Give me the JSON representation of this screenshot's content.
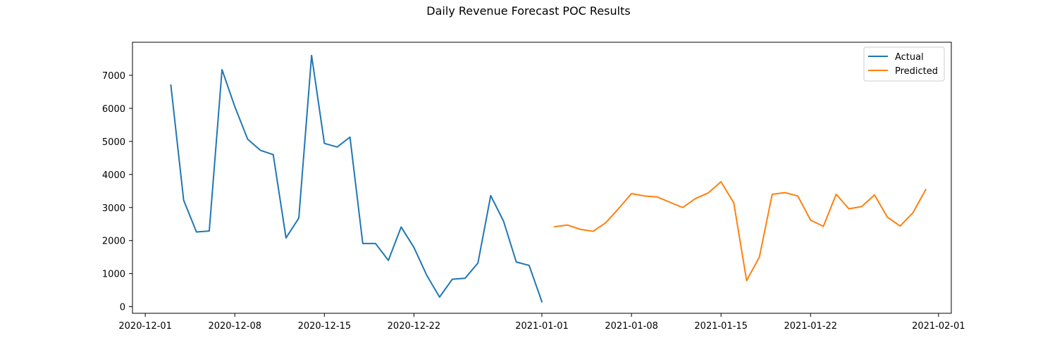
{
  "chart_data": {
    "type": "line",
    "title": "Daily Revenue Forecast POC Results",
    "xlabel": "",
    "ylabel": "",
    "xlim": [
      "2020-11-30",
      "2021-02-02"
    ],
    "ylim": [
      -200,
      8000
    ],
    "grid": false,
    "legend_position": "top-right",
    "x_ticks": [
      "2020-12-01",
      "2020-12-08",
      "2020-12-15",
      "2020-12-22",
      "2021-01-01",
      "2021-01-08",
      "2021-01-15",
      "2021-01-22",
      "2021-02-01"
    ],
    "y_ticks": [
      0,
      1000,
      2000,
      3000,
      4000,
      5000,
      6000,
      7000
    ],
    "series": [
      {
        "name": "Actual",
        "color": "#1f77b4",
        "points": [
          [
            "2020-12-03",
            6700
          ],
          [
            "2020-12-04",
            3220
          ],
          [
            "2020-12-05",
            2260
          ],
          [
            "2020-12-06",
            2290
          ],
          [
            "2020-12-07",
            7170
          ],
          [
            "2020-12-08",
            6050
          ],
          [
            "2020-12-09",
            5070
          ],
          [
            "2020-12-10",
            4730
          ],
          [
            "2020-12-11",
            4600
          ],
          [
            "2020-12-12",
            2080
          ],
          [
            "2020-12-13",
            2680
          ],
          [
            "2020-12-14",
            7600
          ],
          [
            "2020-12-15",
            4940
          ],
          [
            "2020-12-16",
            4830
          ],
          [
            "2020-12-17",
            5130
          ],
          [
            "2020-12-18",
            1910
          ],
          [
            "2020-12-19",
            1910
          ],
          [
            "2020-12-20",
            1400
          ],
          [
            "2020-12-21",
            2410
          ],
          [
            "2020-12-22",
            1790
          ],
          [
            "2020-12-23",
            950
          ],
          [
            "2020-12-24",
            290
          ],
          [
            "2020-12-25",
            830
          ],
          [
            "2020-12-26",
            860
          ],
          [
            "2020-12-27",
            1320
          ],
          [
            "2020-12-28",
            3360
          ],
          [
            "2020-12-29",
            2590
          ],
          [
            "2020-12-30",
            1350
          ],
          [
            "2020-12-31",
            1250
          ],
          [
            "2021-01-01",
            150
          ]
        ]
      },
      {
        "name": "Predicted",
        "color": "#ff7f0e",
        "points": [
          [
            "2021-01-02",
            2420
          ],
          [
            "2021-01-03",
            2470
          ],
          [
            "2021-01-04",
            2340
          ],
          [
            "2021-01-05",
            2280
          ],
          [
            "2021-01-06",
            2540
          ],
          [
            "2021-01-07",
            2970
          ],
          [
            "2021-01-08",
            3420
          ],
          [
            "2021-01-09",
            3350
          ],
          [
            "2021-01-10",
            3320
          ],
          [
            "2021-01-11",
            3160
          ],
          [
            "2021-01-12",
            3000
          ],
          [
            "2021-01-13",
            3270
          ],
          [
            "2021-01-14",
            3440
          ],
          [
            "2021-01-15",
            3780
          ],
          [
            "2021-01-16",
            3140
          ],
          [
            "2021-01-17",
            790
          ],
          [
            "2021-01-18",
            1500
          ],
          [
            "2021-01-19",
            3400
          ],
          [
            "2021-01-20",
            3450
          ],
          [
            "2021-01-21",
            3350
          ],
          [
            "2021-01-22",
            2620
          ],
          [
            "2021-01-23",
            2430
          ],
          [
            "2021-01-24",
            3400
          ],
          [
            "2021-01-25",
            2960
          ],
          [
            "2021-01-26",
            3030
          ],
          [
            "2021-01-27",
            3380
          ],
          [
            "2021-01-28",
            2710
          ],
          [
            "2021-01-29",
            2440
          ],
          [
            "2021-01-30",
            2840
          ],
          [
            "2021-01-31",
            3540
          ]
        ]
      }
    ]
  }
}
